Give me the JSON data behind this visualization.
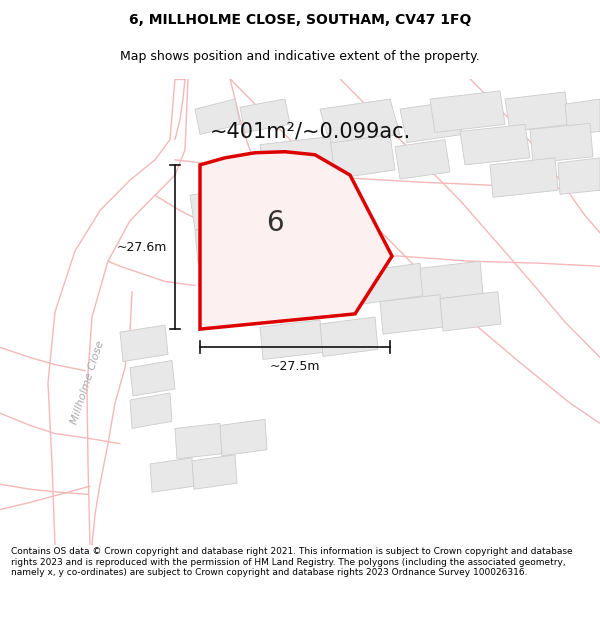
{
  "title_line1": "6, MILLHOLME CLOSE, SOUTHAM, CV47 1FQ",
  "title_line2": "Map shows position and indicative extent of the property.",
  "area_text": "~401m²/~0.099ac.",
  "label_number": "6",
  "dim_vertical": "~27.6m",
  "dim_horizontal": "~27.5m",
  "street_label": "Millholme Close",
  "footer_text": "Contains OS data © Crown copyright and database right 2021. This information is subject to Crown copyright and database rights 2023 and is reproduced with the permission of HM Land Registry. The polygons (including the associated geometry, namely x, y co-ordinates) are subject to Crown copyright and database rights 2023 Ordnance Survey 100026316.",
  "map_bg": "#ffffff",
  "plot_fill": "#ffffff",
  "plot_edge": "#dd0000",
  "road_color": "#f5b8b8",
  "road_lw": 1.0,
  "building_color": "#e8e8e8",
  "building_edge": "#cccccc",
  "dim_color": "#111111",
  "street_color": "#aaaaaa",
  "title_fontsize": 10,
  "subtitle_fontsize": 9,
  "area_fontsize": 15,
  "number_fontsize": 20,
  "dim_fontsize": 9,
  "street_fontsize": 8,
  "footer_fontsize": 6.5
}
